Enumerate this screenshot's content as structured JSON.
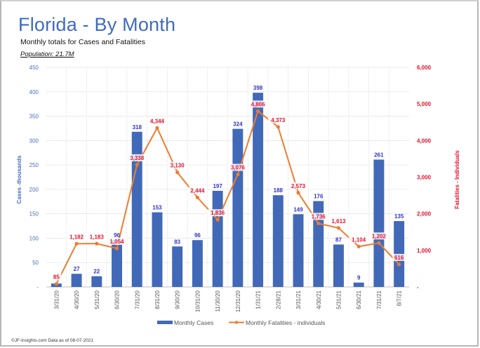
{
  "header": {
    "title": "Florida - By Month",
    "subtitle": "Monthly totals for Cases and Fatalities",
    "population": "Population: 21.7M"
  },
  "footer": "©JF-Insights.com  Data as of 08-07-2021",
  "colors": {
    "bars": "#4169b8",
    "line": "#ed7d31",
    "left_axis": "#4a6fc0",
    "right_axis": "#e8102c",
    "bar_labels": "#3333cc",
    "line_labels": "#e8102c",
    "title": "#3e6bc0"
  },
  "chart_data": {
    "type": "bar+line",
    "title": "Florida - By Month",
    "subtitle": "Monthly totals for Cases and Fatalities",
    "categories": [
      "3/31/20",
      "4/30/20",
      "5/31/20",
      "6/30/20",
      "7/31/20",
      "8/31/20",
      "9/30/20",
      "10/31/20",
      "11/30/20",
      "12/31/20",
      "1/31/21",
      "2/28/21",
      "3/31/21",
      "4/30/21",
      "5/31/21",
      "6/30/21",
      "7/31/21",
      "8/7/21"
    ],
    "series": [
      {
        "name": "Monthly Cases",
        "type": "bar",
        "axis": "left",
        "values": [
          7,
          27,
          22,
          96,
          318,
          153,
          83,
          96,
          197,
          324,
          398,
          188,
          149,
          176,
          87,
          9,
          261,
          135
        ],
        "labels": [
          "",
          "27",
          "22",
          "96",
          "318",
          "153",
          "83",
          "96",
          "197",
          "324",
          "398",
          "188",
          "149",
          "176",
          "87",
          "9",
          "261",
          "135"
        ]
      },
      {
        "name": "Monthly Fatalities - individuals",
        "type": "line",
        "axis": "right",
        "values": [
          85,
          1182,
          1183,
          1054,
          3338,
          4344,
          3130,
          2444,
          1836,
          3076,
          4806,
          4373,
          2573,
          1736,
          1613,
          1104,
          1202,
          616
        ],
        "labels": [
          "85",
          "1,182",
          "1,183",
          "1,054",
          "3,338",
          "4,344",
          "3,130",
          "2,444",
          "1,836",
          "3,076",
          "4,806",
          "4,373",
          "2,573",
          "1,736",
          "1,613",
          "1,104",
          "1,202",
          "616"
        ]
      }
    ],
    "ylabel_left": "Cases -thousands",
    "ylabel_right": "Fatalities - Individuals",
    "ylim_left": [
      0,
      450
    ],
    "ylim_right": [
      0,
      6000
    ],
    "yticks_left": [
      "-",
      "50",
      "100",
      "150",
      "200",
      "250",
      "300",
      "350",
      "400",
      "450"
    ],
    "yticks_right": [
      "-",
      "1,000",
      "2,000",
      "3,000",
      "4,000",
      "5,000",
      "6,000"
    ],
    "grid": true,
    "legend": "bottom-center"
  }
}
